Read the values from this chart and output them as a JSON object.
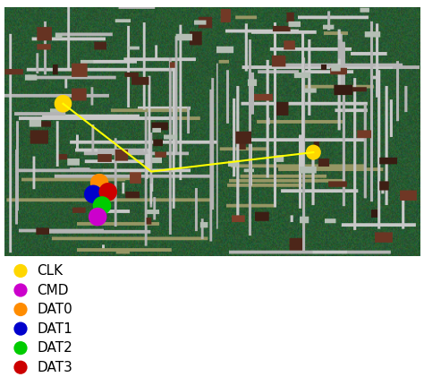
{
  "legend_items": [
    {
      "label": "CLK",
      "color": "#FFD700"
    },
    {
      "label": "CMD",
      "color": "#CC00CC"
    },
    {
      "label": "DAT0",
      "color": "#FF8C00"
    },
    {
      "label": "DAT1",
      "color": "#0000CC"
    },
    {
      "label": "DAT2",
      "color": "#00CC00"
    },
    {
      "label": "DAT3",
      "color": "#CC0000"
    }
  ],
  "legend_dot_size": 120,
  "legend_fontsize": 11,
  "background_color": "#ffffff",
  "figsize": [
    4.74,
    4.21
  ],
  "dpi": 100
}
